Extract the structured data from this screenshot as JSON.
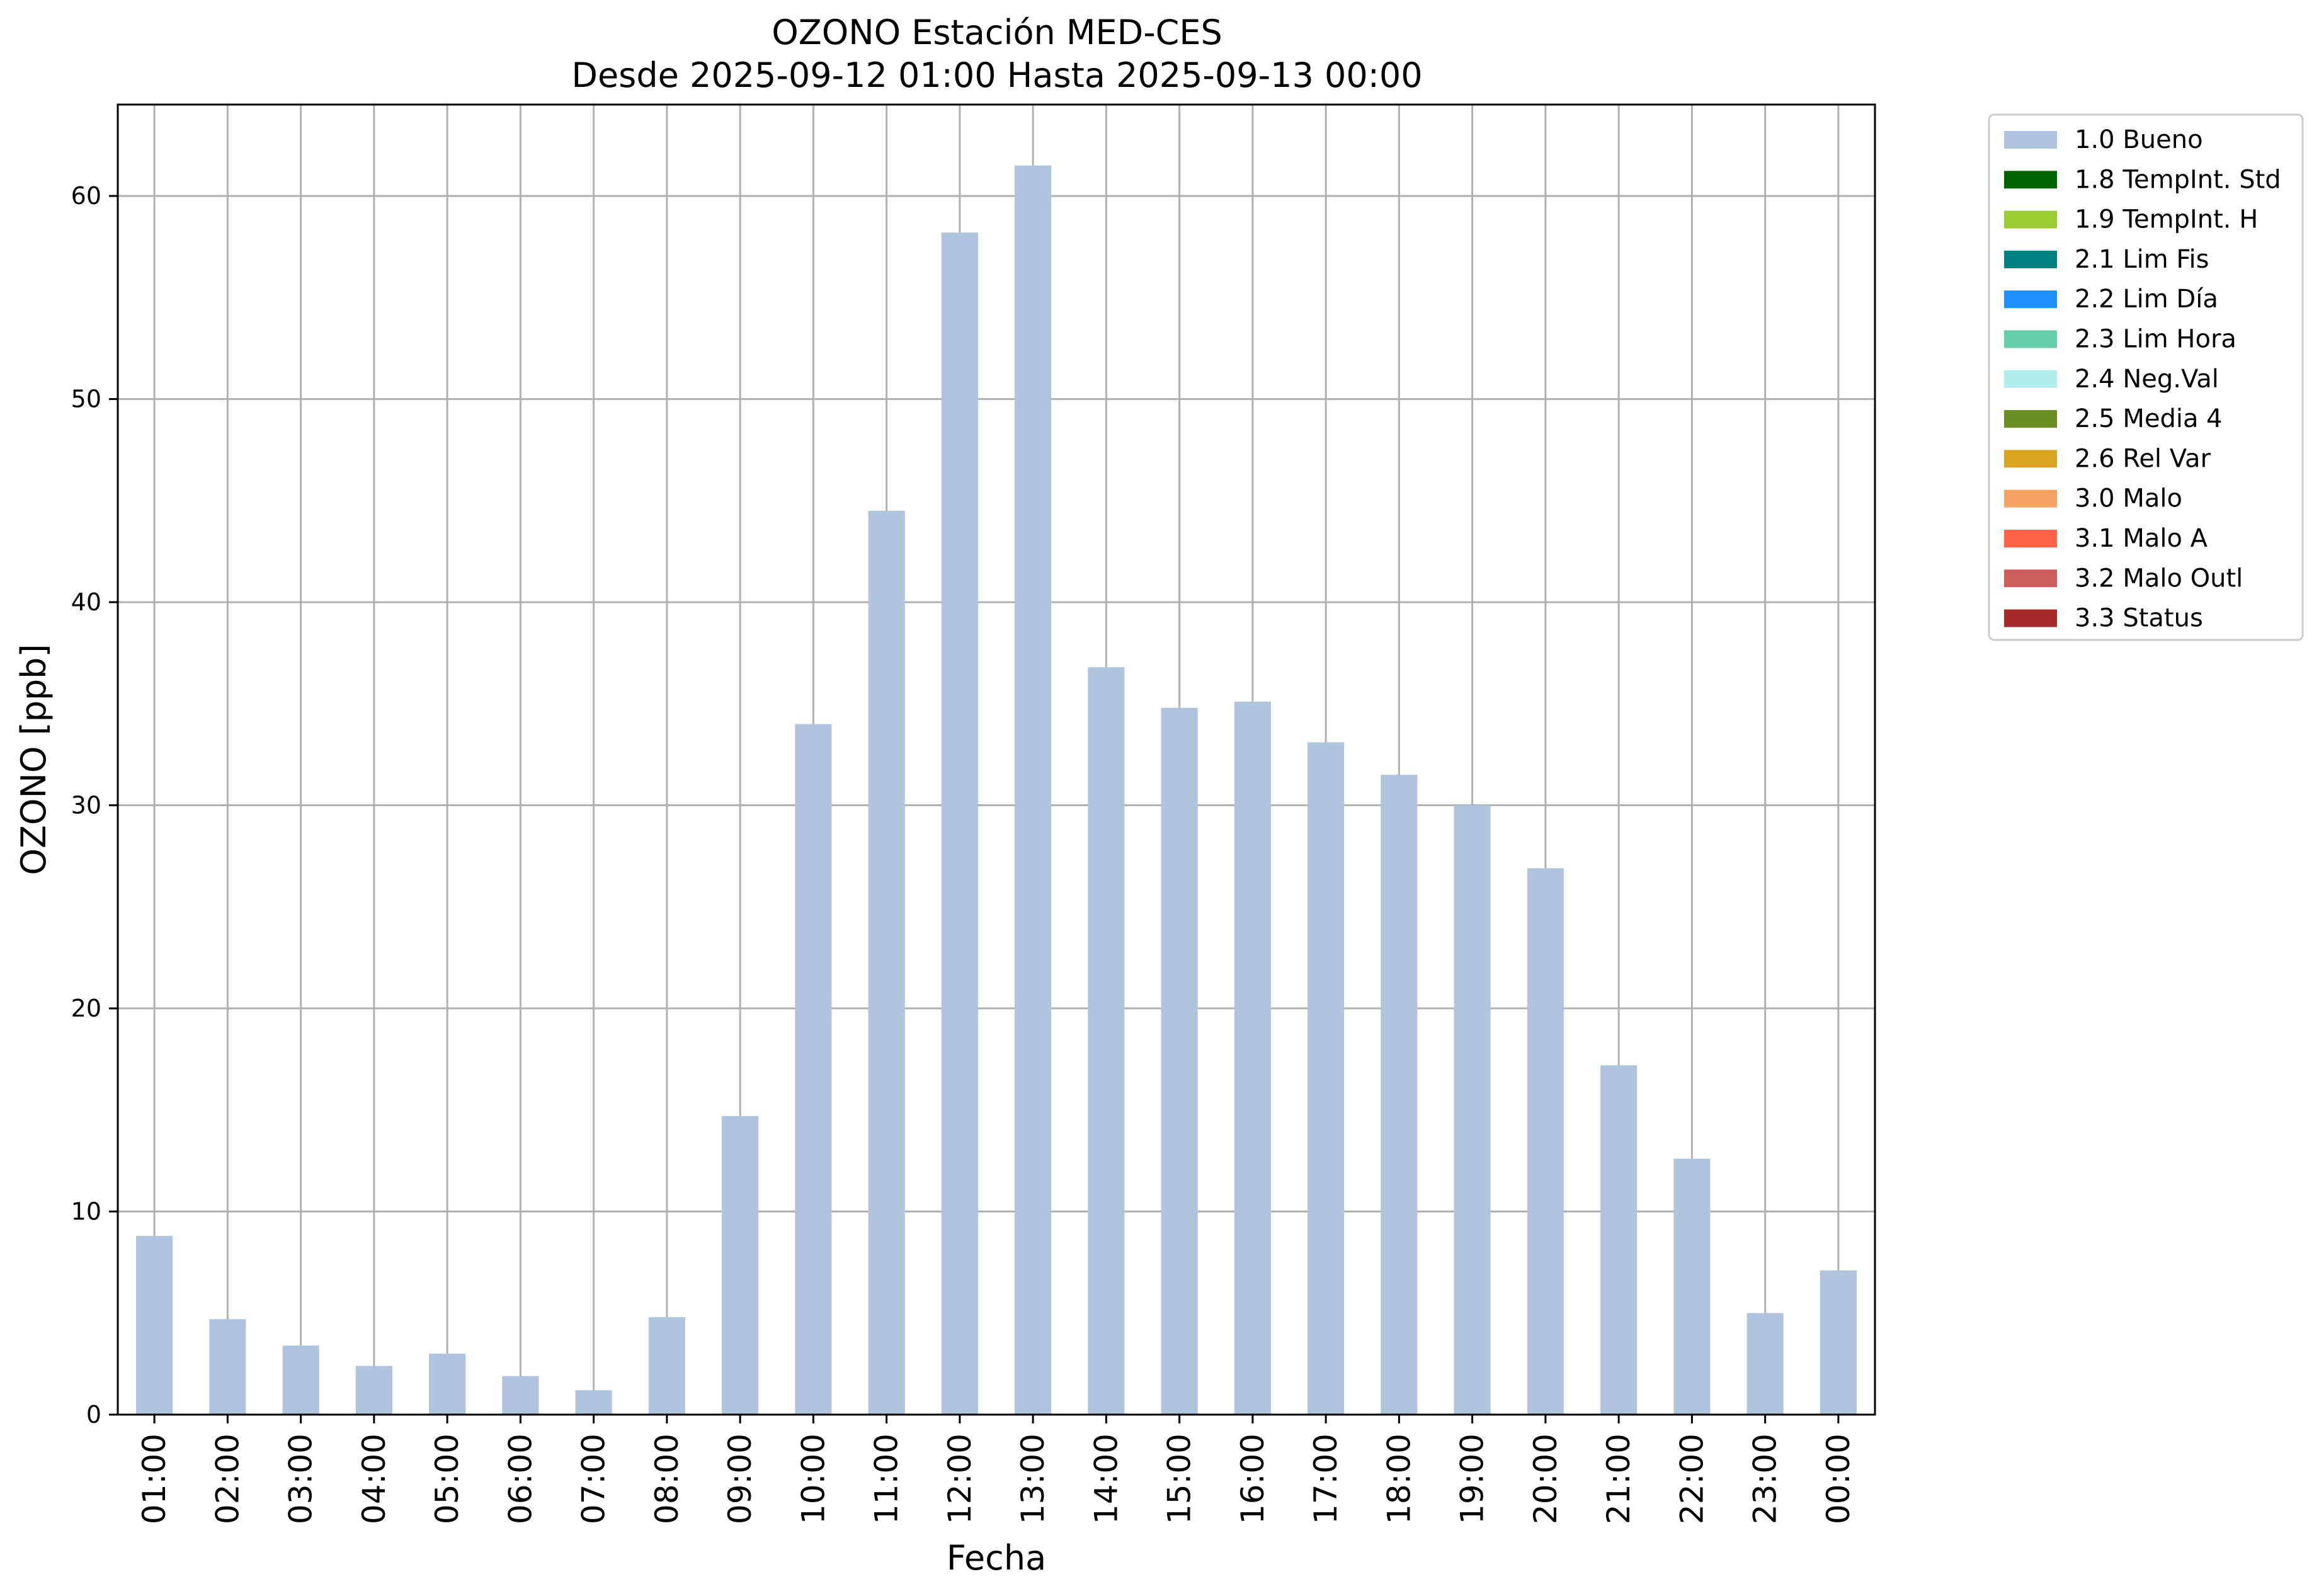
{
  "chart_data": {
    "type": "bar",
    "title": "OZONO Estación MED-CES",
    "subtitle": "Desde 2025-09-12 01:00 Hasta 2025-09-13 00:00",
    "xlabel": "Fecha",
    "ylabel": "OZONO [ppb]",
    "ylim": [
      0,
      64.5
    ],
    "yticks": [
      0,
      10,
      20,
      30,
      40,
      50,
      60
    ],
    "grid": true,
    "legend_position": "outside-top-right",
    "categories": [
      "01:00",
      "02:00",
      "03:00",
      "04:00",
      "05:00",
      "06:00",
      "07:00",
      "08:00",
      "09:00",
      "10:00",
      "11:00",
      "12:00",
      "13:00",
      "14:00",
      "15:00",
      "16:00",
      "17:00",
      "18:00",
      "19:00",
      "20:00",
      "21:00",
      "22:00",
      "23:00",
      "00:00"
    ],
    "series": [
      {
        "name": "1.0 Bueno",
        "color": "#b0c4de",
        "values": [
          8.8,
          4.7,
          3.4,
          2.4,
          3.0,
          1.9,
          1.2,
          4.8,
          14.7,
          34.0,
          44.5,
          58.2,
          61.5,
          36.8,
          34.8,
          35.1,
          33.1,
          31.5,
          30.0,
          26.9,
          17.2,
          12.6,
          5.0,
          7.1
        ]
      }
    ],
    "legend": [
      {
        "label": "1.0 Bueno",
        "color": "#b0c4de"
      },
      {
        "label": "1.8 TempInt. Std",
        "color": "#006400"
      },
      {
        "label": "1.9 TempInt. H",
        "color": "#9acd32"
      },
      {
        "label": "2.1 Lim Fis",
        "color": "#008080"
      },
      {
        "label": "2.2 Lim Día",
        "color": "#1e90ff"
      },
      {
        "label": "2.3 Lim Hora",
        "color": "#66cdaa"
      },
      {
        "label": "2.4 Neg.Val",
        "color": "#afeeee"
      },
      {
        "label": "2.5 Media 4",
        "color": "#6b8e23"
      },
      {
        "label": "2.6 Rel Var",
        "color": "#daa520"
      },
      {
        "label": "3.0 Malo",
        "color": "#f4a460"
      },
      {
        "label": "3.1 Malo A",
        "color": "#ff6347"
      },
      {
        "label": "3.2 Malo Outl",
        "color": "#cd5c5c"
      },
      {
        "label": "3.3 Status",
        "color": "#a52a2a"
      }
    ]
  }
}
